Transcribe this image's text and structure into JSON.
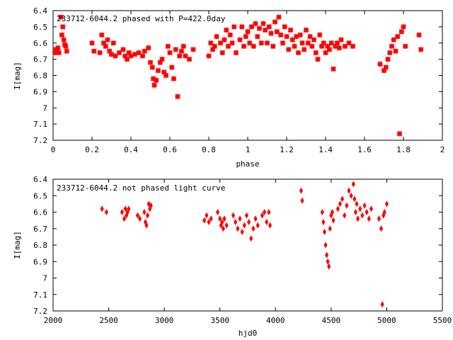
{
  "chart_data": [
    {
      "type": "scatter",
      "title": "233712-6044.2 phased with P=422.0day",
      "xlabel": "phase",
      "ylabel": "I[mag]",
      "xlim": [
        0,
        2
      ],
      "ylim": [
        6.4,
        7.2
      ],
      "y_inverted": true,
      "grid": false,
      "marker_color": "#ff0000",
      "x_ticks": [
        0,
        0.2,
        0.4,
        0.6,
        0.8,
        1,
        1.2,
        1.4,
        1.6,
        1.8,
        2
      ],
      "x_tick_labels": [
        "0",
        "0.2",
        "0.4",
        "0.6",
        "0.8",
        "1",
        "1.2",
        "1.4",
        "1.6",
        "1.8",
        "2"
      ],
      "y_ticks": [
        6.4,
        6.5,
        6.6,
        6.7,
        6.8,
        6.9,
        7.0,
        7.1,
        7.2
      ],
      "y_tick_labels": [
        "6.4",
        "6.5",
        "6.6",
        "6.7",
        "6.8",
        "6.9",
        "7",
        "7.1",
        "7.2"
      ],
      "points": [
        [
          0.01,
          6.66
        ],
        [
          0.015,
          6.64
        ],
        [
          0.02,
          6.65
        ],
        [
          0.025,
          6.63
        ],
        [
          0.03,
          6.66
        ],
        [
          0.04,
          6.44
        ],
        [
          0.045,
          6.55
        ],
        [
          0.05,
          6.5
        ],
        [
          0.055,
          6.58
        ],
        [
          0.06,
          6.61
        ],
        [
          0.065,
          6.62
        ],
        [
          0.07,
          6.65
        ],
        [
          0.2,
          6.6
        ],
        [
          0.21,
          6.65
        ],
        [
          0.24,
          6.66
        ],
        [
          0.25,
          6.55
        ],
        [
          0.26,
          6.6
        ],
        [
          0.27,
          6.62
        ],
        [
          0.28,
          6.58
        ],
        [
          0.29,
          6.65
        ],
        [
          0.3,
          6.67
        ],
        [
          0.31,
          6.6
        ],
        [
          0.32,
          6.68
        ],
        [
          0.34,
          6.66
        ],
        [
          0.36,
          6.64
        ],
        [
          0.37,
          6.68
        ],
        [
          0.38,
          6.7
        ],
        [
          0.39,
          6.66
        ],
        [
          0.4,
          6.68
        ],
        [
          0.42,
          6.67
        ],
        [
          0.44,
          6.66
        ],
        [
          0.46,
          6.68
        ],
        [
          0.47,
          6.65
        ],
        [
          0.49,
          6.63
        ],
        [
          0.5,
          6.72
        ],
        [
          0.51,
          6.75
        ],
        [
          0.515,
          6.82
        ],
        [
          0.52,
          6.86
        ],
        [
          0.53,
          6.83
        ],
        [
          0.54,
          6.77
        ],
        [
          0.55,
          6.72
        ],
        [
          0.56,
          6.7
        ],
        [
          0.57,
          6.78
        ],
        [
          0.58,
          6.8
        ],
        [
          0.59,
          6.62
        ],
        [
          0.6,
          6.66
        ],
        [
          0.61,
          6.75
        ],
        [
          0.62,
          6.82
        ],
        [
          0.63,
          6.64
        ],
        [
          0.64,
          6.93
        ],
        [
          0.65,
          6.68
        ],
        [
          0.66,
          6.65
        ],
        [
          0.67,
          6.62
        ],
        [
          0.68,
          6.68
        ],
        [
          0.7,
          6.7
        ],
        [
          0.72,
          6.64
        ],
        [
          0.8,
          6.68
        ],
        [
          0.81,
          6.6
        ],
        [
          0.82,
          6.64
        ],
        [
          0.83,
          6.62
        ],
        [
          0.84,
          6.56
        ],
        [
          0.86,
          6.6
        ],
        [
          0.87,
          6.66
        ],
        [
          0.88,
          6.58
        ],
        [
          0.89,
          6.52
        ],
        [
          0.9,
          6.62
        ],
        [
          0.91,
          6.55
        ],
        [
          0.92,
          6.6
        ],
        [
          0.93,
          6.5
        ],
        [
          0.94,
          6.66
        ],
        [
          0.96,
          6.58
        ],
        [
          0.97,
          6.5
        ],
        [
          0.98,
          6.62
        ],
        [
          0.99,
          6.56
        ],
        [
          1.0,
          6.53
        ],
        [
          1.01,
          6.6
        ],
        [
          1.02,
          6.5
        ],
        [
          1.03,
          6.62
        ],
        [
          1.04,
          6.48
        ],
        [
          1.05,
          6.56
        ],
        [
          1.06,
          6.51
        ],
        [
          1.07,
          6.6
        ],
        [
          1.08,
          6.48
        ],
        [
          1.09,
          6.52
        ],
        [
          1.1,
          6.6
        ],
        [
          1.11,
          6.5
        ],
        [
          1.12,
          6.54
        ],
        [
          1.13,
          6.62
        ],
        [
          1.14,
          6.47
        ],
        [
          1.15,
          6.53
        ],
        [
          1.16,
          6.44
        ],
        [
          1.17,
          6.55
        ],
        [
          1.18,
          6.6
        ],
        [
          1.19,
          6.5
        ],
        [
          1.2,
          6.56
        ],
        [
          1.21,
          6.64
        ],
        [
          1.22,
          6.52
        ],
        [
          1.23,
          6.58
        ],
        [
          1.24,
          6.62
        ],
        [
          1.25,
          6.56
        ],
        [
          1.26,
          6.66
        ],
        [
          1.27,
          6.55
        ],
        [
          1.28,
          6.6
        ],
        [
          1.29,
          6.64
        ],
        [
          1.3,
          6.52
        ],
        [
          1.31,
          6.6
        ],
        [
          1.32,
          6.56
        ],
        [
          1.33,
          6.62
        ],
        [
          1.34,
          6.58
        ],
        [
          1.35,
          6.66
        ],
        [
          1.36,
          6.7
        ],
        [
          1.37,
          6.55
        ],
        [
          1.38,
          6.62
        ],
        [
          1.39,
          6.6
        ],
        [
          1.4,
          6.66
        ],
        [
          1.41,
          6.62
        ],
        [
          1.42,
          6.64
        ],
        [
          1.43,
          6.6
        ],
        [
          1.44,
          6.76
        ],
        [
          1.45,
          6.62
        ],
        [
          1.46,
          6.6
        ],
        [
          1.47,
          6.63
        ],
        [
          1.48,
          6.58
        ],
        [
          1.5,
          6.62
        ],
        [
          1.52,
          6.6
        ],
        [
          1.54,
          6.62
        ],
        [
          1.68,
          6.73
        ],
        [
          1.7,
          6.77
        ],
        [
          1.71,
          6.75
        ],
        [
          1.72,
          6.7
        ],
        [
          1.73,
          6.66
        ],
        [
          1.74,
          6.62
        ],
        [
          1.75,
          6.58
        ],
        [
          1.76,
          6.65
        ],
        [
          1.77,
          6.56
        ],
        [
          1.78,
          7.16
        ],
        [
          1.79,
          6.53
        ],
        [
          1.8,
          6.5
        ],
        [
          1.81,
          6.62
        ],
        [
          1.88,
          6.55
        ],
        [
          1.89,
          6.64
        ]
      ]
    },
    {
      "type": "scatter",
      "title": "233712-6044.2 not phased light curve",
      "xlabel": "hjd0",
      "ylabel": "I[mag]",
      "xlim": [
        2000,
        5500
      ],
      "ylim": [
        6.4,
        7.2
      ],
      "y_inverted": true,
      "grid": false,
      "marker_color": "#ff0000",
      "x_ticks": [
        2000,
        2500,
        3000,
        3500,
        4000,
        4500,
        5000,
        5500
      ],
      "x_tick_labels": [
        "2000",
        "2500",
        "3000",
        "3500",
        "4000",
        "4500",
        "5000",
        "5500"
      ],
      "y_ticks": [
        6.4,
        6.5,
        6.6,
        6.7,
        6.8,
        6.9,
        7.0,
        7.1,
        7.2
      ],
      "y_tick_labels": [
        "6.4",
        "6.5",
        "6.6",
        "6.7",
        "6.8",
        "6.9",
        "7",
        "7.1",
        "7.2"
      ],
      "points": [
        [
          2440,
          6.58
        ],
        [
          2480,
          6.6
        ],
        [
          2620,
          6.6
        ],
        [
          2640,
          6.64
        ],
        [
          2650,
          6.58
        ],
        [
          2660,
          6.62
        ],
        [
          2670,
          6.6
        ],
        [
          2680,
          6.58
        ],
        [
          2760,
          6.62
        ],
        [
          2780,
          6.64
        ],
        [
          2820,
          6.6
        ],
        [
          2830,
          6.66
        ],
        [
          2840,
          6.68
        ],
        [
          2850,
          6.62
        ],
        [
          2860,
          6.55
        ],
        [
          2870,
          6.58
        ],
        [
          2880,
          6.56
        ],
        [
          3360,
          6.65
        ],
        [
          3380,
          6.62
        ],
        [
          3400,
          6.66
        ],
        [
          3420,
          6.64
        ],
        [
          3480,
          6.6
        ],
        [
          3500,
          6.64
        ],
        [
          3510,
          6.68
        ],
        [
          3520,
          6.66
        ],
        [
          3530,
          6.7
        ],
        [
          3540,
          6.64
        ],
        [
          3560,
          6.68
        ],
        [
          3620,
          6.62
        ],
        [
          3640,
          6.66
        ],
        [
          3660,
          6.7
        ],
        [
          3680,
          6.64
        ],
        [
          3700,
          6.72
        ],
        [
          3720,
          6.68
        ],
        [
          3740,
          6.62
        ],
        [
          3760,
          6.66
        ],
        [
          3780,
          6.76
        ],
        [
          3800,
          6.7
        ],
        [
          3820,
          6.64
        ],
        [
          3840,
          6.68
        ],
        [
          3880,
          6.62
        ],
        [
          3900,
          6.6
        ],
        [
          3920,
          6.66
        ],
        [
          3940,
          6.6
        ],
        [
          3950,
          6.68
        ],
        [
          4230,
          6.47
        ],
        [
          4240,
          6.53
        ],
        [
          4420,
          6.6
        ],
        [
          4430,
          6.66
        ],
        [
          4440,
          6.72
        ],
        [
          4450,
          6.8
        ],
        [
          4460,
          6.86
        ],
        [
          4470,
          6.9
        ],
        [
          4480,
          6.93
        ],
        [
          4490,
          6.7
        ],
        [
          4500,
          6.62
        ],
        [
          4510,
          6.6
        ],
        [
          4520,
          6.65
        ],
        [
          4560,
          6.58
        ],
        [
          4580,
          6.55
        ],
        [
          4600,
          6.52
        ],
        [
          4620,
          6.62
        ],
        [
          4640,
          6.56
        ],
        [
          4660,
          6.47
        ],
        [
          4680,
          6.5
        ],
        [
          4700,
          6.43
        ],
        [
          4710,
          6.52
        ],
        [
          4720,
          6.6
        ],
        [
          4730,
          6.55
        ],
        [
          4740,
          6.64
        ],
        [
          4760,
          6.58
        ],
        [
          4780,
          6.62
        ],
        [
          4800,
          6.56
        ],
        [
          4820,
          6.6
        ],
        [
          4840,
          6.64
        ],
        [
          4860,
          6.58
        ],
        [
          4930,
          6.64
        ],
        [
          4950,
          6.7
        ],
        [
          4960,
          7.16
        ],
        [
          4970,
          6.62
        ],
        [
          4980,
          6.6
        ],
        [
          5000,
          6.55
        ]
      ]
    }
  ]
}
